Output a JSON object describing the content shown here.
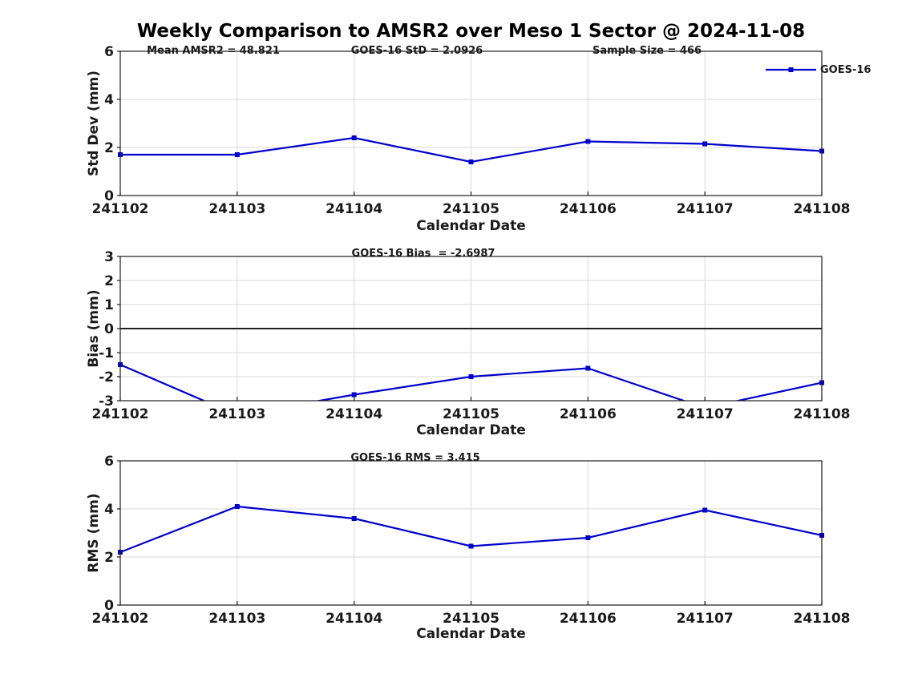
{
  "title": "Weekly Comparison to AMSR2 over Meso 1 Sector @ 2024-11-08",
  "legend": {
    "label": "GOES-16",
    "position": "top-right"
  },
  "colors": {
    "line": "#0000cc",
    "grid": "#d9d9d9",
    "axis": "#1a1a1a",
    "zero_line": "#000000",
    "text": "#1a1a1a"
  },
  "chart_data": [
    {
      "type": "line",
      "name": "std-dev",
      "categories": [
        "241102",
        "241103",
        "241104",
        "241105",
        "241106",
        "241107",
        "241108"
      ],
      "series": [
        {
          "name": "GOES-16",
          "values": [
            1.7,
            1.7,
            2.4,
            1.4,
            2.25,
            2.15,
            1.85
          ]
        }
      ],
      "xlabel": "Calendar Date",
      "ylabel": "Std Dev (mm)",
      "ylim": [
        0,
        6
      ],
      "yticks": [
        0,
        2,
        4,
        6
      ],
      "grid": true,
      "marker": "square",
      "annotations": [
        "Mean AMSR2 = 48.821",
        "GOES-16 StD = 2.0926",
        "Sample Size = 466"
      ]
    },
    {
      "type": "line",
      "name": "bias",
      "categories": [
        "241102",
        "241103",
        "241104",
        "241105",
        "241106",
        "241107",
        "241108"
      ],
      "series": [
        {
          "name": "GOES-16",
          "values": [
            -1.5,
            -3.6,
            -2.75,
            -2.0,
            -1.65,
            -3.3,
            -2.25
          ]
        }
      ],
      "xlabel": "Calendar Date",
      "ylabel": "Bias (mm)",
      "ylim": [
        -3,
        3
      ],
      "yticks": [
        -3,
        -2,
        -1,
        0,
        1,
        2,
        3
      ],
      "grid": true,
      "zero_line": true,
      "marker": "square",
      "annotations": [
        "GOES-16 Bias  = -2.6987"
      ]
    },
    {
      "type": "line",
      "name": "rms",
      "categories": [
        "241102",
        "241103",
        "241104",
        "241105",
        "241106",
        "241107",
        "241108"
      ],
      "series": [
        {
          "name": "GOES-16",
          "values": [
            2.2,
            4.1,
            3.6,
            2.45,
            2.8,
            3.95,
            2.9
          ]
        }
      ],
      "xlabel": "Calendar Date",
      "ylabel": "RMS (mm)",
      "ylim": [
        0,
        6
      ],
      "yticks": [
        0,
        2,
        4,
        6
      ],
      "grid": true,
      "marker": "square",
      "annotations": [
        "GOES-16 RMS = 3.415"
      ]
    }
  ]
}
